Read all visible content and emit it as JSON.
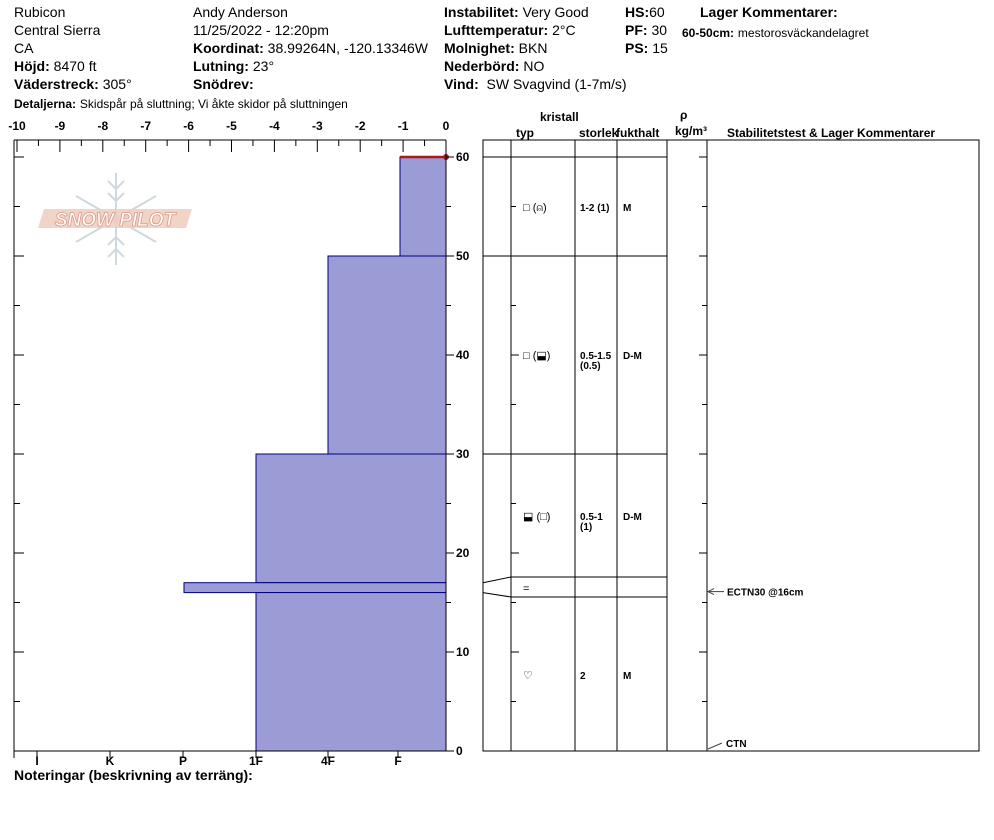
{
  "header": {
    "location": "Rubicon",
    "region": "Central Sierra",
    "state": "CA",
    "observer": "Andy Anderson",
    "datetime": "11/25/2022 - 12:20pm",
    "elevation_label": "Höjd:",
    "elevation": "8470 ft",
    "aspect_label": "Väderstreck:",
    "aspect": "305°",
    "coord_label": "Koordinat:",
    "coordinates": "38.99264N, -120.13346W",
    "slope_label": "Lutning:",
    "slope": "23°",
    "drift_label": "Snödrev:",
    "drift": "",
    "instability_label": "Instabilitet:",
    "instability": "Very Good",
    "airtemp_label": "Lufttemperatur:",
    "airtemp": "2°C",
    "cloud_label": "Molnighet:",
    "cloud": "BKN",
    "precip_label": "Nederbörd:",
    "precip": "NO",
    "wind_label": "Vind:",
    "wind": "SW Svagvind (1-7m/s)",
    "hs_label": "HS:",
    "hs": "60",
    "pf_label": "PF:",
    "pf": "30",
    "ps_label": "PS:",
    "ps": "15",
    "layer_comments_title": "Lager Kommentarer:",
    "layer_comment_range": "60-50cm:",
    "layer_comment_text": "mestorosväckandelagret",
    "details_label": "Detaljerna:",
    "details_text": "Skidspår på sluttning;  Vi åkte skidor på sluttningen"
  },
  "columns": {
    "kristall": "kristall",
    "typ": "typ",
    "storlek": "storlek",
    "fukthalt": "fukthalt",
    "rho": "ρ",
    "density_unit": "kg/m³",
    "stability": "Stabilitetstest & Lager Kommentarer"
  },
  "notes_label": "Noteringar (beskrivning av terräng):",
  "logo_text": "SNOW PILOT",
  "colors": {
    "layer_fill": "#9b9bd6",
    "layer_stroke": "#000080",
    "surface": "#b01818",
    "logo": "#e8a890"
  },
  "chart_data": {
    "type": "snow-profile",
    "depth_ticks": [
      0,
      10,
      20,
      30,
      40,
      50,
      60
    ],
    "ylim": [
      0,
      60
    ],
    "temp_ticks": [
      "-10",
      "-9",
      "-8",
      "-7",
      "-6",
      "-5",
      "-4",
      "-3",
      "-2",
      "-1",
      "0"
    ],
    "hardness_ticks": [
      "I",
      "K",
      "P",
      "1F",
      "4F",
      "F"
    ],
    "layers": [
      {
        "top": 60,
        "bottom": 50,
        "hardness_step": 11,
        "type": "□ (⍝)",
        "size": "1-2 (1)",
        "moisture": "M"
      },
      {
        "top": 50,
        "bottom": 30,
        "hardness_step": 28,
        "type": "□ (⬓)",
        "size": "0.5-1.5\n(0.5)",
        "moisture": "D-M"
      },
      {
        "top": 30,
        "bottom": 17,
        "hardness_step": 45,
        "type": "⬓ (□)",
        "size": "0.5-1\n(1)",
        "moisture": "D-M"
      },
      {
        "top": 17,
        "bottom": 16,
        "hardness_step": 65,
        "type": "=",
        "size": "",
        "moisture": ""
      },
      {
        "top": 16,
        "bottom": 0,
        "hardness_step": 45,
        "type": "♡",
        "size": "2",
        "moisture": "M"
      }
    ],
    "stability_tests": [
      {
        "depth": 16,
        "label": "ECTN30 @16cm"
      },
      {
        "depth": 0,
        "label": "CTN"
      }
    ]
  }
}
